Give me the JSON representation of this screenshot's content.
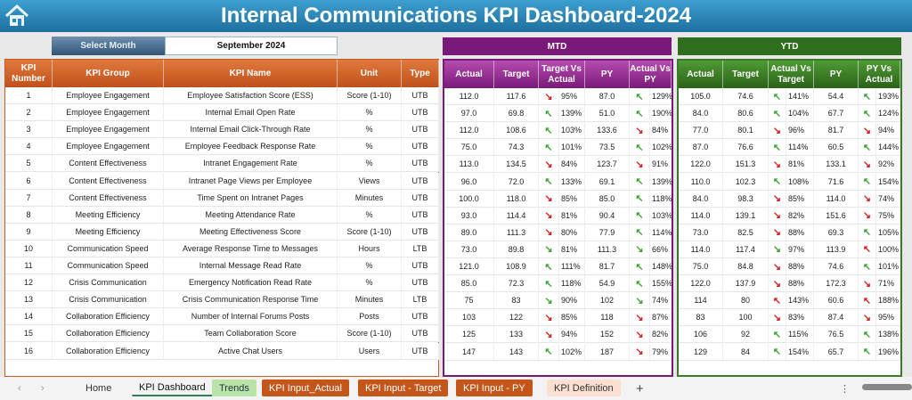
{
  "title": "Internal Communications KPI Dashboard-2024",
  "select_month": {
    "label": "Select Month",
    "value": "September 2024"
  },
  "sections": {
    "mtd": "MTD",
    "ytd": "YTD"
  },
  "colors": {
    "title": "#2a86bb",
    "left_header": "#c85a1e",
    "mtd_header": "#7a1a78",
    "ytd_header": "#2f6e1c",
    "arrow_green": "#3aa335",
    "arrow_red": "#d42020"
  },
  "left_headers": [
    "KPI Number",
    "KPI Group",
    "KPI Name",
    "Unit",
    "Type"
  ],
  "mtd_headers": [
    "Actual",
    "Target",
    "Target Vs Actual",
    "PY",
    "Actual Vs PY"
  ],
  "ytd_headers": [
    "Actual",
    "Target",
    "Actual Vs Target",
    "PY",
    "PY Vs Actual"
  ],
  "rows": [
    {
      "num": "1",
      "group": "Employee Engagement",
      "name": "Employee Satisfaction Score (ESS)",
      "unit": "Score (1-10)",
      "type": "UTB",
      "mtd": [
        "112.0",
        "117.6",
        "down-red",
        "95%",
        "87.0",
        "up-green",
        "129%"
      ],
      "ytd": [
        "105.0",
        "74.6",
        "up-green",
        "141%",
        "54.4",
        "up-green",
        "193%"
      ]
    },
    {
      "num": "2",
      "group": "Employee Engagement",
      "name": "Internal Email Open Rate",
      "unit": "%",
      "type": "UTB",
      "mtd": [
        "97.0",
        "69.8",
        "up-green",
        "139%",
        "51.0",
        "up-green",
        "190%"
      ],
      "ytd": [
        "84.0",
        "80.6",
        "up-green",
        "104%",
        "67.7",
        "up-green",
        "124%"
      ]
    },
    {
      "num": "3",
      "group": "Employee Engagement",
      "name": "Internal Email Click-Through Rate",
      "unit": "%",
      "type": "UTB",
      "mtd": [
        "112.0",
        "108.6",
        "up-green",
        "103%",
        "133.6",
        "down-red",
        "84%"
      ],
      "ytd": [
        "77.0",
        "80.1",
        "down-red",
        "96%",
        "81.7",
        "down-red",
        "94%"
      ]
    },
    {
      "num": "4",
      "group": "Employee Engagement",
      "name": "Employee Feedback Response Rate",
      "unit": "%",
      "type": "UTB",
      "mtd": [
        "75.0",
        "74.3",
        "up-green",
        "101%",
        "73.5",
        "up-green",
        "102%"
      ],
      "ytd": [
        "87.0",
        "76.6",
        "up-green",
        "114%",
        "60.5",
        "up-green",
        "144%"
      ]
    },
    {
      "num": "5",
      "group": "Content Effectiveness",
      "name": "Intranet Engagement Rate",
      "unit": "%",
      "type": "UTB",
      "mtd": [
        "113.0",
        "134.5",
        "down-red",
        "84%",
        "123.7",
        "down-red",
        "91%"
      ],
      "ytd": [
        "122.0",
        "151.3",
        "down-red",
        "81%",
        "133.1",
        "down-red",
        "92%"
      ]
    },
    {
      "num": "6",
      "group": "Content Effectiveness",
      "name": "Intranet Page Views per Employee",
      "unit": "Views",
      "type": "UTB",
      "mtd": [
        "96.0",
        "72.0",
        "up-green",
        "133%",
        "69.1",
        "up-green",
        "139%"
      ],
      "ytd": [
        "110.0",
        "102.3",
        "up-green",
        "108%",
        "71.6",
        "up-green",
        "154%"
      ]
    },
    {
      "num": "7",
      "group": "Content Effectiveness",
      "name": "Time Spent on Intranet Pages",
      "unit": "Minutes",
      "type": "UTB",
      "mtd": [
        "100.0",
        "118.0",
        "down-red",
        "85%",
        "85.0",
        "up-green",
        "118%"
      ],
      "ytd": [
        "84.0",
        "98.3",
        "down-red",
        "85%",
        "114.0",
        "down-red",
        "74%"
      ]
    },
    {
      "num": "8",
      "group": "Meeting Efficiency",
      "name": "Meeting Attendance Rate",
      "unit": "%",
      "type": "UTB",
      "mtd": [
        "93.0",
        "114.4",
        "down-red",
        "81%",
        "90.4",
        "up-green",
        "103%"
      ],
      "ytd": [
        "114.0",
        "139.1",
        "down-red",
        "82%",
        "151.6",
        "down-red",
        "75%"
      ]
    },
    {
      "num": "9",
      "group": "Meeting Efficiency",
      "name": "Meeting Effectiveness Score",
      "unit": "Score (1-10)",
      "type": "UTB",
      "mtd": [
        "89.0",
        "111.3",
        "down-red",
        "80%",
        "77.9",
        "up-green",
        "114%"
      ],
      "ytd": [
        "73.0",
        "82.5",
        "down-red",
        "88%",
        "69.3",
        "up-green",
        "105%"
      ]
    },
    {
      "num": "10",
      "group": "Communication Speed",
      "name": "Average Response Time to Messages",
      "unit": "Hours",
      "type": "LTB",
      "mtd": [
        "73.0",
        "89.8",
        "down-green",
        "81%",
        "111.3",
        "down-green",
        "66%"
      ],
      "ytd": [
        "114.0",
        "117.4",
        "down-green",
        "97%",
        "113.9",
        "up-red",
        "100%"
      ]
    },
    {
      "num": "11",
      "group": "Communication Speed",
      "name": "Internal Message Read Rate",
      "unit": "%",
      "type": "UTB",
      "mtd": [
        "121.0",
        "108.9",
        "up-green",
        "111%",
        "81.7",
        "up-green",
        "148%"
      ],
      "ytd": [
        "75.0",
        "84.8",
        "down-red",
        "88%",
        "74.6",
        "up-green",
        "101%"
      ]
    },
    {
      "num": "12",
      "group": "Crisis Communication",
      "name": "Emergency Notification Read Rate",
      "unit": "%",
      "type": "UTB",
      "mtd": [
        "85.0",
        "72.3",
        "up-green",
        "118%",
        "54.9",
        "up-green",
        "155%"
      ],
      "ytd": [
        "122.0",
        "137.9",
        "down-red",
        "88%",
        "172.3",
        "down-red",
        "71%"
      ]
    },
    {
      "num": "13",
      "group": "Crisis Communication",
      "name": "Crisis Communication Response Time",
      "unit": "Minutes",
      "type": "LTB",
      "mtd": [
        "75",
        "83",
        "down-green",
        "90%",
        "102",
        "down-green",
        "74%"
      ],
      "ytd": [
        "114",
        "80",
        "up-red",
        "143%",
        "60.6",
        "up-red",
        "188%"
      ]
    },
    {
      "num": "14",
      "group": "Collaboration Efficiency",
      "name": "Number of Internal Forums Posts",
      "unit": "Posts",
      "type": "UTB",
      "mtd": [
        "103",
        "122",
        "down-red",
        "85%",
        "118",
        "down-red",
        "87%"
      ],
      "ytd": [
        "83",
        "100",
        "down-red",
        "83%",
        "87.4",
        "down-red",
        "95%"
      ]
    },
    {
      "num": "15",
      "group": "Collaboration Efficiency",
      "name": "Team Collaboration Score",
      "unit": "Score (1-10)",
      "type": "UTB",
      "mtd": [
        "125",
        "133",
        "down-red",
        "94%",
        "152",
        "down-red",
        "82%"
      ],
      "ytd": [
        "106",
        "92",
        "up-green",
        "115%",
        "76.5",
        "up-green",
        "138%"
      ]
    },
    {
      "num": "16",
      "group": "Collaboration Efficiency",
      "name": "Active Chat Users",
      "unit": "Users",
      "type": "UTB",
      "mtd": [
        "147",
        "143",
        "up-green",
        "102%",
        "187",
        "down-red",
        "79%"
      ],
      "ytd": [
        "129",
        "84",
        "up-green",
        "154%",
        "65.7",
        "up-green",
        "196%"
      ]
    }
  ],
  "tabs": [
    {
      "label": "Home",
      "bg": "transparent",
      "fg": "#333"
    },
    {
      "label": "KPI Dashboard",
      "bg": "transparent",
      "fg": "#111",
      "active": true
    },
    {
      "label": "Trends",
      "bg": "#b9e4a8",
      "fg": "#234"
    },
    {
      "label": "KPI Input_Actual",
      "bg": "#c5561a",
      "fg": "#fff"
    },
    {
      "label": "KPI Input - Target",
      "bg": "#c5561a",
      "fg": "#fff"
    },
    {
      "label": "KPI Input - PY",
      "bg": "#c5561a",
      "fg": "#fff"
    },
    {
      "label": "KPI Definition",
      "bg": "#fbe0d2",
      "fg": "#333"
    }
  ],
  "add_tab": "+"
}
